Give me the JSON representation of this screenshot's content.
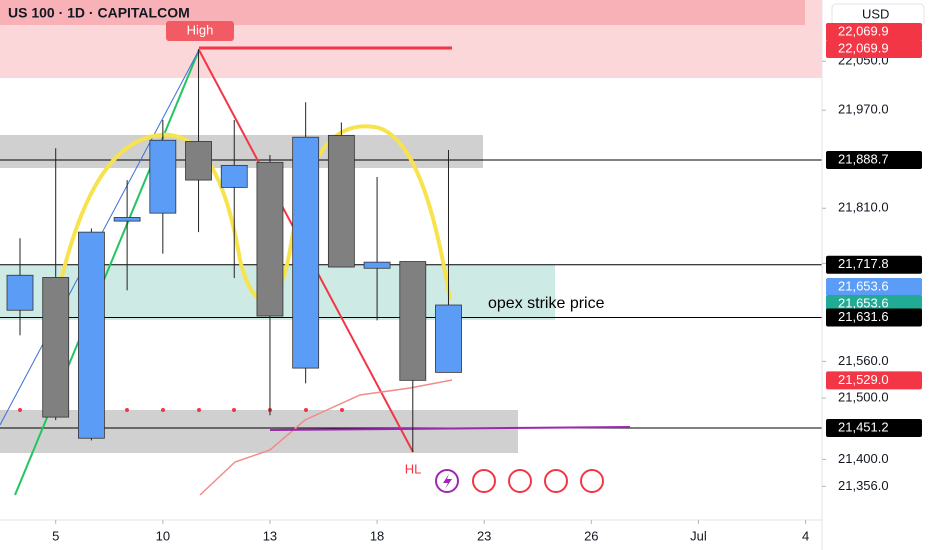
{
  "chart_data": {
    "type": "candlestick",
    "title": "US 100 · 1D · CAPITALCOM",
    "currency": "USD",
    "x": [
      0,
      1,
      2,
      3,
      4,
      5,
      6,
      7,
      8,
      9,
      10,
      11,
      12
    ],
    "open": [
      21643.5,
      21697,
      21434.5,
      21789,
      21802,
      21919,
      21844,
      21885,
      21549,
      21929,
      21712,
      21723,
      21542
    ],
    "high": [
      21761,
      21908,
      21777,
      21856,
      21954,
      22069.9,
      21954,
      21897,
      21983,
      21950,
      21861,
      21723,
      21905
    ],
    "low": [
      21602.6,
      21464,
      21431,
      21676,
      21736,
      21771,
      21696,
      21472,
      21524,
      21714,
      21627,
      21412,
      21542
    ],
    "close": [
      21700.6,
      21469,
      21771,
      21795,
      21921,
      21856,
      21880,
      21634,
      21926,
      21714,
      21722,
      21529,
      21652
    ],
    "up_color": "#5b9cf6",
    "down_color": "#808080",
    "xlim": [
      -0.56,
      22.46
    ],
    "xticks": [
      {
        "value": 1,
        "label": "5"
      },
      {
        "value": 4,
        "label": "10"
      },
      {
        "value": 7,
        "label": "13"
      },
      {
        "value": 10,
        "label": "18"
      },
      {
        "value": 13,
        "label": "23"
      },
      {
        "value": 16,
        "label": "26"
      },
      {
        "value": 19,
        "label": "Jul"
      },
      {
        "value": 22,
        "label": "4"
      }
    ],
    "ylim": [
      21301,
      22150
    ],
    "yticks": [
      {
        "value": 21356,
        "label": "21,356.0"
      },
      {
        "value": 21400,
        "label": "21,400.0"
      },
      {
        "value": 21500,
        "label": "21,500.0"
      },
      {
        "value": 21560,
        "label": "21,560.0"
      },
      {
        "value": 21720,
        "label": "21,720.0"
      },
      {
        "value": 21810,
        "label": "21,810.0"
      },
      {
        "value": 21970,
        "label": "21,970.0"
      },
      {
        "value": 22050,
        "label": "22,050.0"
      }
    ],
    "price_labels": [
      {
        "value": 22069.9,
        "label": "22,069.9",
        "color": "#f23645"
      },
      {
        "value": 22069.9,
        "label": "22,069.9",
        "color": "#f23645"
      },
      {
        "value": 21888.7,
        "label": "21,888.7",
        "color": "#000000"
      },
      {
        "value": 21717.8,
        "label": "21,717.8",
        "color": "#000000"
      },
      {
        "value": 21653.6,
        "label": "21,653.6",
        "color": "#5b9cf6"
      },
      {
        "value": 21653.6,
        "label": "21,653.6",
        "color": "#22ab94"
      },
      {
        "value": 21631.6,
        "label": "21,631.6",
        "color": "#000000"
      },
      {
        "value": 21529.0,
        "label": "21,529.0",
        "color": "#f23645"
      },
      {
        "value": 21451.2,
        "label": "21,451.2",
        "color": "#000000"
      }
    ],
    "annotations": {
      "high": "High",
      "opex": "opex strike price",
      "hl": "HL"
    }
  }
}
